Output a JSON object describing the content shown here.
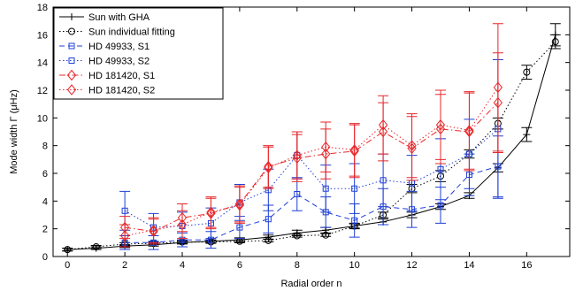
{
  "chart_data": {
    "type": "line",
    "xlabel": "Radial order n",
    "ylabel": "Mode width Γ (μHz)",
    "xlim": [
      -0.5,
      17.5
    ],
    "ylim": [
      0,
      18
    ],
    "xticks": [
      0,
      2,
      4,
      6,
      8,
      10,
      12,
      14,
      16
    ],
    "yticks": [
      0,
      2,
      4,
      6,
      8,
      10,
      12,
      14,
      16,
      18
    ],
    "grid": false,
    "legend_position": "top-left",
    "series": [
      {
        "name": "Sun with GHA",
        "color": "#000000",
        "line": "solid",
        "marker": "plus",
        "x": [
          0,
          1,
          2,
          3,
          4,
          5,
          6,
          7,
          8,
          9,
          10,
          11,
          12,
          13,
          14,
          15,
          16,
          17
        ],
        "y": [
          0.5,
          0.6,
          0.75,
          0.85,
          1.0,
          1.1,
          1.2,
          1.4,
          1.7,
          1.9,
          2.2,
          2.5,
          3.0,
          3.6,
          4.4,
          6.4,
          8.8,
          16.0
        ],
        "err": [
          0.1,
          0.1,
          0.1,
          0.1,
          0.1,
          0.1,
          0.15,
          0.15,
          0.2,
          0.2,
          0.2,
          0.2,
          0.2,
          0.2,
          0.2,
          0.3,
          0.5,
          0.8
        ]
      },
      {
        "name": "Sun individual fitting",
        "color": "#000000",
        "line": "dotted",
        "marker": "circle",
        "x": [
          0,
          1,
          2,
          3,
          4,
          5,
          6,
          7,
          8,
          9,
          10,
          11,
          12,
          13,
          14,
          15,
          16,
          17
        ],
        "y": [
          0.5,
          0.7,
          0.9,
          0.95,
          1.05,
          1.05,
          1.1,
          1.15,
          1.5,
          1.55,
          2.2,
          3.0,
          4.9,
          5.8,
          7.4,
          9.6,
          13.3,
          15.5
        ],
        "err": [
          0.1,
          0.1,
          0.1,
          0.1,
          0.1,
          0.1,
          0.1,
          0.1,
          0.1,
          0.1,
          0.15,
          0.2,
          0.3,
          0.4,
          0.3,
          0.4,
          0.5,
          0.5
        ]
      },
      {
        "name": "HD 49933, S1",
        "color": "#1f3fd6",
        "line": "dashed",
        "marker": "square",
        "x": [
          2,
          3,
          4,
          5,
          6,
          7,
          8,
          9,
          10,
          11,
          12,
          13,
          14,
          15
        ],
        "y": [
          1.0,
          1.0,
          1.2,
          1.2,
          2.1,
          2.7,
          4.5,
          3.2,
          2.6,
          3.6,
          3.4,
          3.7,
          5.9,
          6.5
        ],
        "err": [
          0.5,
          0.5,
          0.5,
          0.6,
          0.8,
          1.0,
          1.2,
          1.1,
          1.2,
          1.3,
          1.3,
          1.3,
          1.5,
          2.2
        ]
      },
      {
        "name": "HD 49933, S2",
        "color": "#1f3fd6",
        "line": "dotted",
        "marker": "square",
        "x": [
          2,
          3,
          4,
          5,
          6,
          7,
          8,
          9,
          10,
          11,
          12,
          13,
          14,
          15
        ],
        "y": [
          3.3,
          2.1,
          2.2,
          2.4,
          3.9,
          4.8,
          7.3,
          4.9,
          4.9,
          5.5,
          5.3,
          6.3,
          7.4,
          9.2
        ],
        "err": [
          1.4,
          1.0,
          1.0,
          1.1,
          1.3,
          1.5,
          1.7,
          1.7,
          1.8,
          1.9,
          2.0,
          2.2,
          2.5,
          5.0
        ]
      },
      {
        "name": "HD 181420, S1",
        "color": "#e8272a",
        "line": "dashdot",
        "marker": "diamond",
        "x": [
          2,
          3,
          4,
          5,
          6,
          7,
          8,
          9,
          10,
          11,
          12,
          13,
          14,
          15
        ],
        "y": [
          2.1,
          1.8,
          2.8,
          3.1,
          3.8,
          6.5,
          7.1,
          7.4,
          7.6,
          9.0,
          7.8,
          9.2,
          9.0,
          11.1
        ],
        "err": [
          0.8,
          0.9,
          1.0,
          1.1,
          1.3,
          1.5,
          1.7,
          1.8,
          1.9,
          2.1,
          2.3,
          2.5,
          2.8,
          3.6
        ]
      },
      {
        "name": "HD 181420, S2",
        "color": "#e8272a",
        "line": "dotted",
        "marker": "diamond",
        "x": [
          2,
          3,
          4,
          5,
          6,
          7,
          8,
          9,
          10,
          11,
          12,
          13,
          14,
          15
        ],
        "y": [
          1.5,
          1.9,
          2.3,
          3.2,
          3.7,
          6.4,
          7.3,
          7.9,
          7.7,
          9.5,
          8.0,
          9.5,
          9.1,
          12.2
        ],
        "err": [
          0.8,
          0.9,
          1.0,
          1.1,
          1.3,
          1.5,
          1.7,
          1.8,
          1.9,
          2.1,
          2.3,
          2.5,
          2.8,
          4.6
        ]
      }
    ]
  }
}
